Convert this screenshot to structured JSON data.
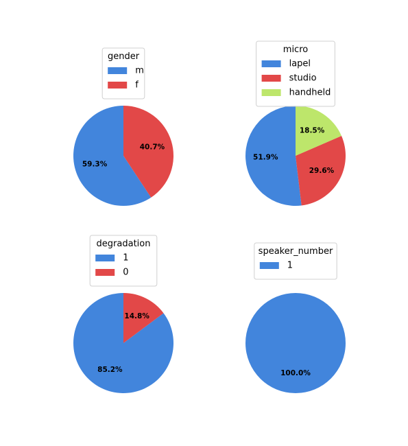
{
  "colors": {
    "blue": "#4285dc",
    "red": "#e24848",
    "green": "#bde66b",
    "legend_border": "#d0d0d0"
  },
  "chart_data": [
    {
      "type": "pie",
      "legend_title": "gender",
      "legend_placement": "top-center",
      "slices": [
        {
          "label": "m",
          "value": 59.3,
          "pct_label": "59.3%",
          "color": "#4285dc"
        },
        {
          "label": "f",
          "value": 40.7,
          "pct_label": "40.7%",
          "color": "#e24848"
        }
      ]
    },
    {
      "type": "pie",
      "legend_title": "micro",
      "legend_placement": "top-center",
      "slices": [
        {
          "label": "lapel",
          "value": 51.9,
          "pct_label": "51.9%",
          "color": "#4285dc"
        },
        {
          "label": "studio",
          "value": 29.6,
          "pct_label": "29.6%",
          "color": "#e24848"
        },
        {
          "label": "handheld",
          "value": 18.5,
          "pct_label": "18.5%",
          "color": "#bde66b"
        }
      ]
    },
    {
      "type": "pie",
      "legend_title": "degradation",
      "legend_placement": "top-center",
      "slices": [
        {
          "label": "1",
          "value": 85.2,
          "pct_label": "85.2%",
          "color": "#4285dc"
        },
        {
          "label": "0",
          "value": 14.8,
          "pct_label": "14.8%",
          "color": "#e24848"
        }
      ]
    },
    {
      "type": "pie",
      "legend_title": "speaker_number",
      "legend_placement": "top-center",
      "slices": [
        {
          "label": "1",
          "value": 100.0,
          "pct_label": "100.0%",
          "color": "#4285dc"
        }
      ]
    }
  ]
}
